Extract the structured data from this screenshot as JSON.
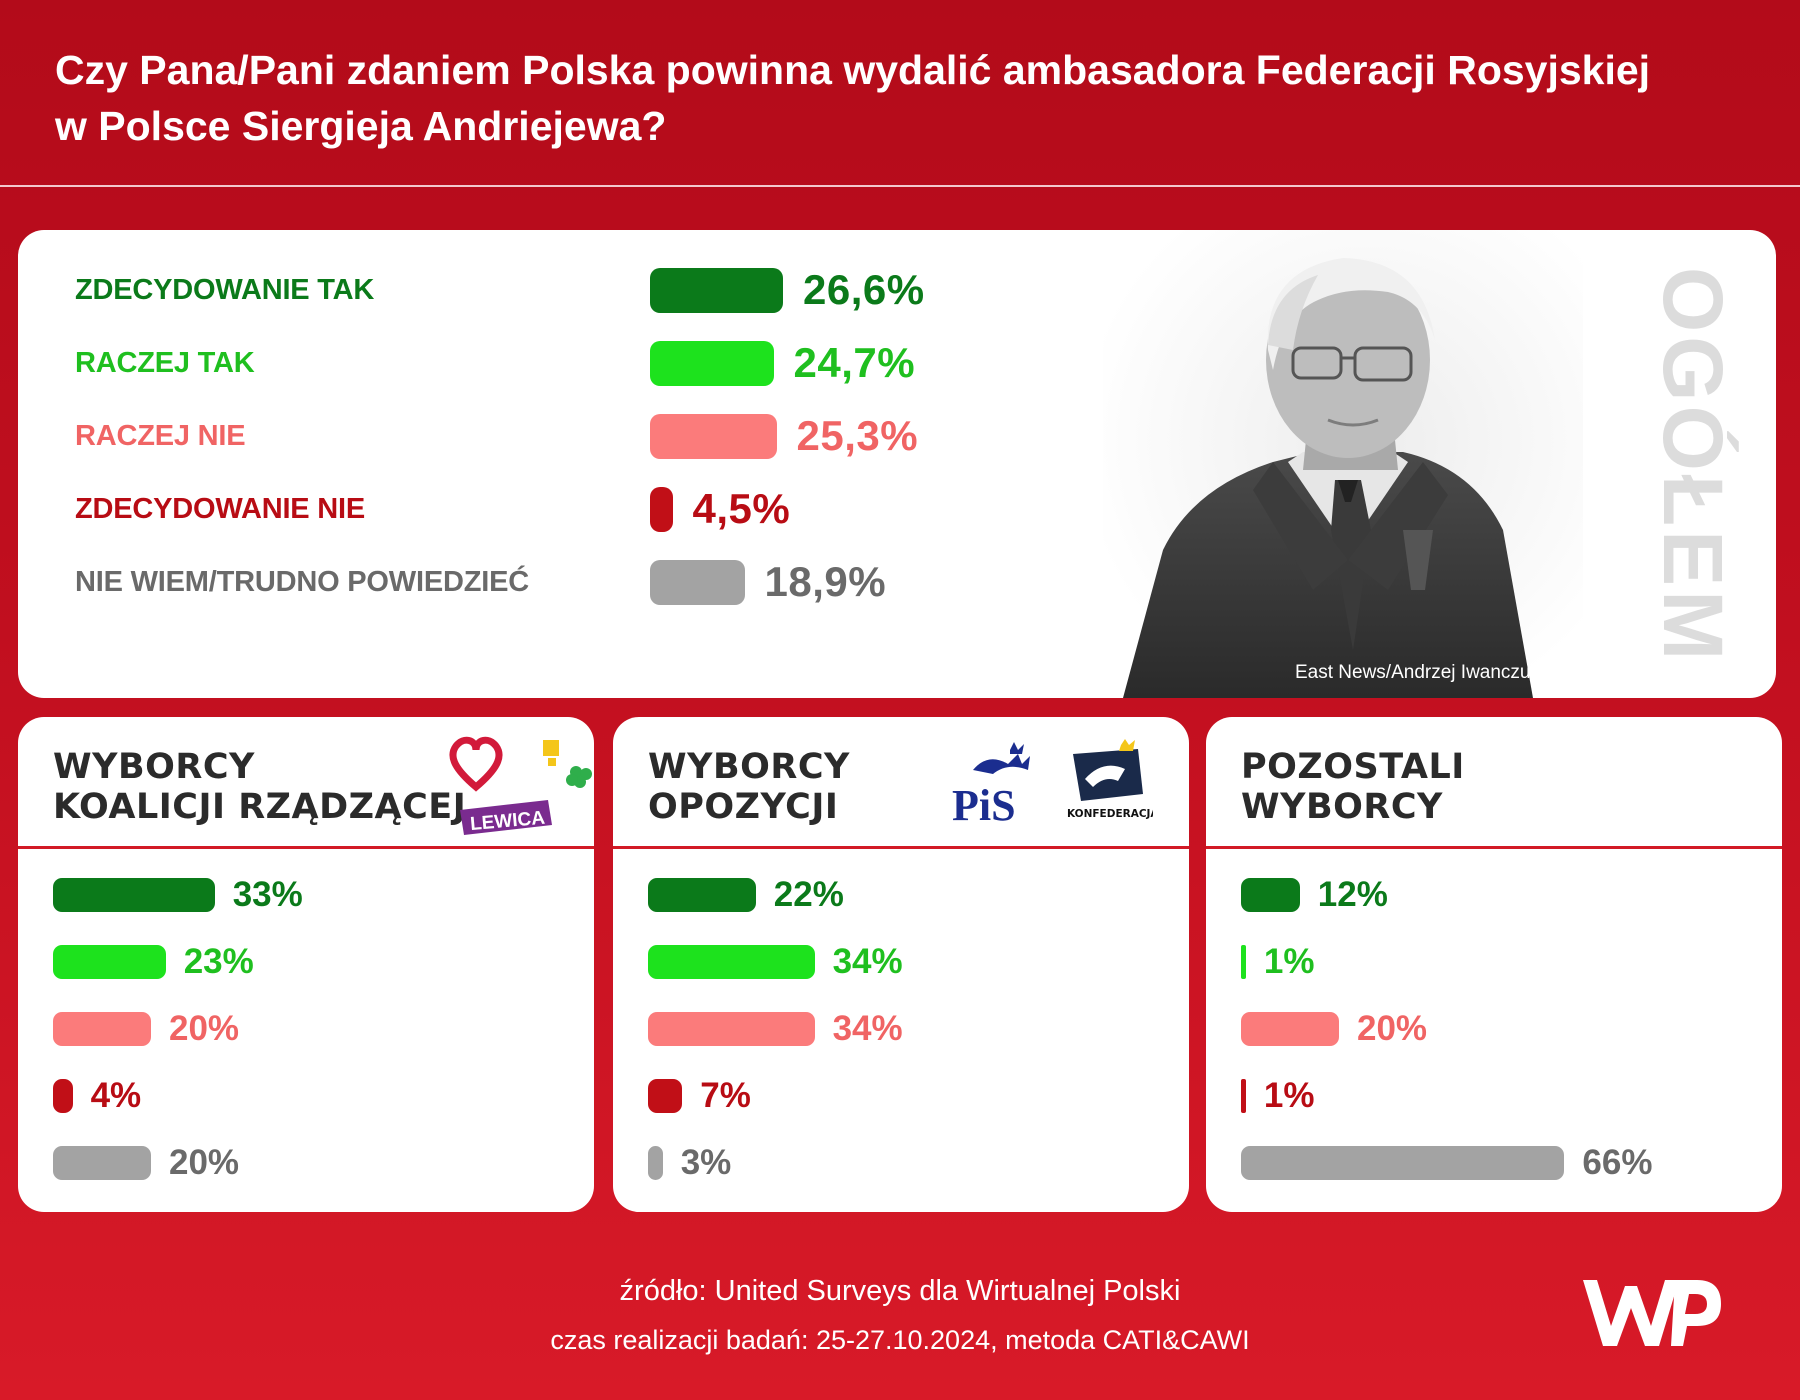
{
  "title": {
    "line1": "Czy Pana/Pani zdaniem Polska powinna wydalić ambasadora Federacji Rosyjskiej",
    "line2": "w Polsce Siergieja Andriejewa?"
  },
  "colors": {
    "zdecydowanie_tak": "#0b7a1a",
    "raczej_tak": "#1de21d",
    "raczej_nie": "#fb7b7b",
    "zdecydowanie_nie": "#c10f17",
    "nie_wiem": "#a3a3a3",
    "header_red": "#b30b1a"
  },
  "main": {
    "side_label": "OGÓŁEM",
    "photo_credit": "East News/Andrzej Iwanczuk",
    "rows": [
      {
        "label": "ZDECYDOWANIE TAK",
        "pct": "26,6%"
      },
      {
        "label": "RACZEJ TAK",
        "pct": "24,7%"
      },
      {
        "label": "RACZEJ NIE",
        "pct": "25,3%"
      },
      {
        "label": "ZDECYDOWANIE NIE",
        "pct": "4,5%"
      },
      {
        "label": "NIE WIEM/TRUDNO POWIEDZIEĆ",
        "pct": "18,9%"
      }
    ]
  },
  "groups": [
    {
      "title1": "WYBORCY",
      "title2": "KOALICJI RZĄDZĄCEJ",
      "logo_text": "LEWICA",
      "pcts": [
        "33%",
        "23%",
        "20%",
        "4%",
        "20%"
      ]
    },
    {
      "title1": "WYBORCY",
      "title2": "OPOZYCJI",
      "logo_pis": "PiS",
      "logo_konf": "KONFEDERACJA",
      "pcts": [
        "22%",
        "34%",
        "34%",
        "7%",
        "3%"
      ]
    },
    {
      "title1": "POZOSTALI",
      "title2": "WYBORCY",
      "pcts": [
        "12%",
        "1%",
        "20%",
        "1%",
        "66%"
      ]
    }
  ],
  "footer": {
    "source": "źródło: United Surveys dla Wirtualnej Polski",
    "method": "czas realizacji badań: 25-27.10.2024, metoda CATI&CAWI"
  },
  "chart_data": [
    {
      "type": "bar",
      "title": "Czy Pana/Pani zdaniem Polska powinna wydalić ambasadora Federacji Rosyjskiej w Polsce Siergieja Andriejewa?",
      "subtitle": "OGÓŁEM",
      "categories": [
        "ZDECYDOWANIE TAK",
        "RACZEJ TAK",
        "RACZEJ NIE",
        "ZDECYDOWANIE NIE",
        "NIE WIEM/TRUDNO POWIEDZIEĆ"
      ],
      "values": [
        26.6,
        24.7,
        25.3,
        4.5,
        18.9
      ],
      "unit": "%",
      "orientation": "horizontal"
    },
    {
      "type": "bar",
      "title": "WYBORCY KOALICJI RZĄDZĄCEJ",
      "categories": [
        "ZDECYDOWANIE TAK",
        "RACZEJ TAK",
        "RACZEJ NIE",
        "ZDECYDOWANIE NIE",
        "NIE WIEM/TRUDNO POWIEDZIEĆ"
      ],
      "values": [
        33,
        23,
        20,
        4,
        20
      ],
      "unit": "%",
      "orientation": "horizontal"
    },
    {
      "type": "bar",
      "title": "WYBORCY OPOZYCJI",
      "categories": [
        "ZDECYDOWANIE TAK",
        "RACZEJ TAK",
        "RACZEJ NIE",
        "ZDECYDOWANIE NIE",
        "NIE WIEM/TRUDNO POWIEDZIEĆ"
      ],
      "values": [
        22,
        34,
        34,
        7,
        3
      ],
      "unit": "%",
      "orientation": "horizontal"
    },
    {
      "type": "bar",
      "title": "POZOSTALI WYBORCY",
      "categories": [
        "ZDECYDOWANIE TAK",
        "RACZEJ TAK",
        "RACZEJ NIE",
        "ZDECYDOWANIE NIE",
        "NIE WIEM/TRUDNO POWIEDZIEĆ"
      ],
      "values": [
        12,
        1,
        20,
        1,
        66
      ],
      "unit": "%",
      "orientation": "horizontal"
    }
  ]
}
